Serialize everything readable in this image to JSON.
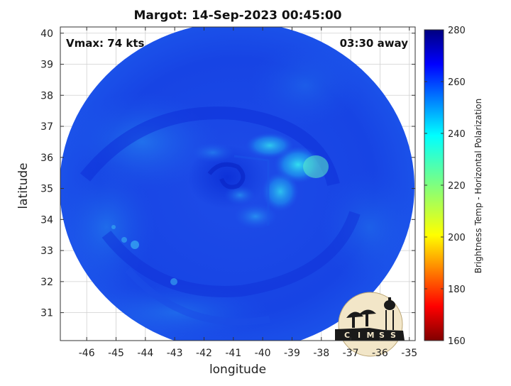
{
  "title": "Margot: 14-Sep-2023 00:45:00",
  "vmax_label": "Vmax: 74 kts",
  "time_away_label": "03:30 away",
  "xlabel": "longitude",
  "ylabel": "latitude",
  "colorbar": {
    "label": "Brightness Temp - Horizontal Polarization",
    "min": 160,
    "max": 280,
    "ticks": [
      160,
      180,
      200,
      220,
      240,
      260,
      280
    ],
    "colormap": "jet"
  },
  "map": {
    "lon_range": [
      -46.9,
      -34.8
    ],
    "lat_range": [
      30.1,
      40.2
    ],
    "lon_ticks": [
      -46,
      -45,
      -44,
      -43,
      -42,
      -41,
      -40,
      -39,
      -38,
      -37,
      -36,
      -35
    ],
    "lat_ticks": [
      31,
      32,
      33,
      34,
      35,
      36,
      37,
      38,
      39,
      40
    ],
    "grid": true,
    "storm_center": {
      "lon": -40.8,
      "lat": 35.5
    },
    "swath_background_temp": 262,
    "warm_core_features": [
      {
        "lon": -39.4,
        "lat": 35.6,
        "temp": 236
      },
      {
        "lon": -38.6,
        "lat": 35.8,
        "temp": 232
      },
      {
        "lon": -40.1,
        "lat": 36.2,
        "temp": 245
      },
      {
        "lon": -40.3,
        "lat": 34.3,
        "temp": 246
      }
    ]
  },
  "logo": {
    "text": "CIMSS",
    "letters": [
      "C",
      "I",
      "M",
      "S",
      "S"
    ],
    "colors": {
      "disc": "#f2e6c8",
      "silhouette": "#1a1a1a"
    }
  },
  "colors": {
    "background": "#ffffff",
    "swath_base": "#1040e0",
    "grid": "#d0d0d0",
    "axis": "#333333"
  }
}
